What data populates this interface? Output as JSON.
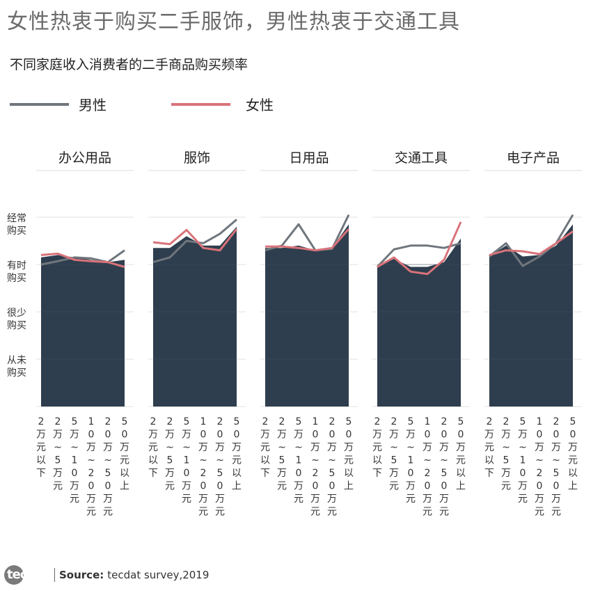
{
  "title": "女性热衷于购买二手服饰，男性热衷于交通工具",
  "subtitle": "不同家庭收入消费者的二手商品购买频率",
  "legend": [
    {
      "label": "男性",
      "color": "#6f767d"
    },
    {
      "label": "女性",
      "color": "#d9737a"
    }
  ],
  "footer": {
    "logo": "tecdat",
    "source_label": "Source:",
    "source_text": "tecdat survey,2019"
  },
  "chart_data": {
    "type": "line",
    "fill_color": "#2e3e4e",
    "y_levels": [
      "从未购买",
      "很少购买",
      "有时购买",
      "经常购买"
    ],
    "ylim": [
      0,
      4
    ],
    "categories": [
      "2万元以下",
      "2万~5万元",
      "5万~10万元",
      "10万~20万元",
      "20万~50万元",
      "50万元以上"
    ],
    "panels": [
      {
        "name": "办公用品",
        "fill": [
          3.15,
          3.2,
          3.15,
          3.1,
          3.05,
          3.1
        ],
        "male": [
          3.0,
          3.07,
          3.15,
          3.13,
          3.05,
          3.3
        ],
        "female": [
          3.2,
          3.23,
          3.1,
          3.07,
          3.05,
          2.95
        ]
      },
      {
        "name": "服饰",
        "fill": [
          3.35,
          3.35,
          3.6,
          3.4,
          3.4,
          3.8
        ],
        "male": [
          3.05,
          3.15,
          3.5,
          3.45,
          3.65,
          3.95
        ],
        "female": [
          3.47,
          3.43,
          3.73,
          3.35,
          3.3,
          3.75
        ]
      },
      {
        "name": "日用品",
        "fill": [
          3.35,
          3.35,
          3.4,
          3.3,
          3.35,
          3.85
        ],
        "male": [
          3.3,
          3.4,
          3.85,
          3.3,
          3.33,
          4.05
        ],
        "female": [
          3.38,
          3.38,
          3.35,
          3.3,
          3.35,
          3.75
        ]
      },
      {
        "name": "交通工具",
        "fill": [
          2.95,
          3.12,
          2.95,
          2.95,
          3.05,
          3.55
        ],
        "male": [
          2.95,
          3.32,
          3.4,
          3.4,
          3.35,
          3.45
        ],
        "female": [
          2.95,
          3.15,
          2.85,
          2.8,
          3.1,
          3.9
        ]
      },
      {
        "name": "电子产品",
        "fill": [
          3.17,
          3.4,
          3.17,
          3.2,
          3.4,
          3.85
        ],
        "male": [
          3.17,
          3.45,
          2.97,
          3.17,
          3.45,
          4.05
        ],
        "female": [
          3.2,
          3.3,
          3.28,
          3.22,
          3.45,
          3.7
        ]
      }
    ]
  }
}
